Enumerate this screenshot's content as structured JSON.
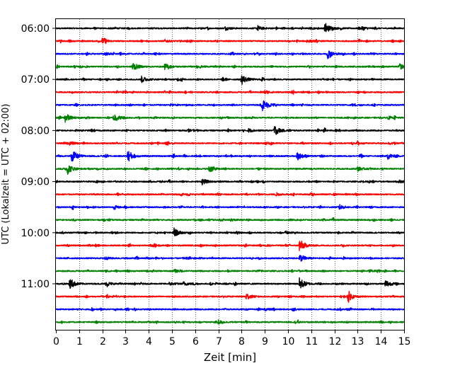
{
  "chart_data": {
    "type": "line",
    "subtype": "seismogram-helicorder",
    "xlabel": "Zeit  [min]",
    "ylabel": "UTC (Lokalzeit = UTC + 02:00)",
    "xlim": [
      0,
      15
    ],
    "x_ticks": [
      "0",
      "1",
      "2",
      "3",
      "4",
      "5",
      "6",
      "7",
      "8",
      "9",
      "10",
      "11",
      "12",
      "13",
      "14",
      "15"
    ],
    "y_ticks": [
      "06:00",
      "07:00",
      "08:00",
      "09:00",
      "10:00",
      "11:00"
    ],
    "grid": "vertical dotted lines at each minute",
    "trace_minutes": 15,
    "trace_colors": [
      "#000000",
      "#ff0000",
      "#0000ff",
      "#008000"
    ],
    "traces": [
      {
        "start": "06:00",
        "color": "#000000",
        "events": [
          {
            "t": 11.6,
            "amp": 1.0
          },
          {
            "t": 8.7,
            "amp": 0.35
          },
          {
            "t": 13.2,
            "amp": 0.3
          },
          {
            "t": 7.3,
            "amp": 0.3
          }
        ]
      },
      {
        "start": "06:15",
        "color": "#ff0000",
        "events": [
          {
            "t": 2.0,
            "amp": 0.45
          },
          {
            "t": 10.8,
            "amp": 0.25
          },
          {
            "t": 4.7,
            "amp": 0.2
          }
        ]
      },
      {
        "start": "06:30",
        "color": "#0000ff",
        "events": [
          {
            "t": 11.7,
            "amp": 0.8
          },
          {
            "t": 2.1,
            "amp": 0.25
          }
        ]
      },
      {
        "start": "06:45",
        "color": "#008000",
        "events": [
          {
            "t": 3.3,
            "amp": 0.8
          },
          {
            "t": 4.7,
            "amp": 0.5
          },
          {
            "t": 14.8,
            "amp": 0.5
          }
        ]
      },
      {
        "start": "07:00",
        "color": "#000000",
        "events": [
          {
            "t": 3.7,
            "amp": 0.55
          },
          {
            "t": 8.0,
            "amp": 0.9
          }
        ]
      },
      {
        "start": "07:15",
        "color": "#ff0000",
        "events": [
          {
            "t": 9.0,
            "amp": 0.3
          }
        ]
      },
      {
        "start": "07:30",
        "color": "#0000ff",
        "events": [
          {
            "t": 8.9,
            "amp": 1.0
          }
        ]
      },
      {
        "start": "07:45",
        "color": "#008000",
        "events": [
          {
            "t": 0.4,
            "amp": 0.8
          },
          {
            "t": 2.5,
            "amp": 0.8
          }
        ]
      },
      {
        "start": "08:00",
        "color": "#000000",
        "events": [
          {
            "t": 9.4,
            "amp": 1.0
          },
          {
            "t": 8.3,
            "amp": 0.3
          }
        ]
      },
      {
        "start": "08:15",
        "color": "#ff0000",
        "events": [
          {
            "t": 0.6,
            "amp": 0.3
          },
          {
            "t": 9.0,
            "amp": 0.2
          }
        ]
      },
      {
        "start": "08:30",
        "color": "#0000ff",
        "events": [
          {
            "t": 0.7,
            "amp": 1.1
          },
          {
            "t": 3.1,
            "amp": 1.1
          },
          {
            "t": 10.4,
            "amp": 0.7
          },
          {
            "t": 14.3,
            "amp": 0.5
          }
        ]
      },
      {
        "start": "08:45",
        "color": "#008000",
        "events": [
          {
            "t": 0.5,
            "amp": 0.9
          },
          {
            "t": 6.6,
            "amp": 0.6
          },
          {
            "t": 13.0,
            "amp": 0.35
          }
        ]
      },
      {
        "start": "09:00",
        "color": "#000000",
        "events": [
          {
            "t": 6.3,
            "amp": 0.5
          },
          {
            "t": 14.8,
            "amp": 0.2
          }
        ]
      },
      {
        "start": "09:15",
        "color": "#ff0000",
        "events": [
          {
            "t": 9.5,
            "amp": 0.2
          }
        ]
      },
      {
        "start": "09:30",
        "color": "#0000ff",
        "events": [
          {
            "t": 12.2,
            "amp": 0.45
          },
          {
            "t": 2.5,
            "amp": 0.2
          }
        ]
      },
      {
        "start": "09:45",
        "color": "#008000",
        "events": [
          {
            "t": 7.5,
            "amp": 0.2
          }
        ]
      },
      {
        "start": "10:00",
        "color": "#000000",
        "events": [
          {
            "t": 5.1,
            "amp": 0.7
          },
          {
            "t": 9.9,
            "amp": 0.25
          }
        ]
      },
      {
        "start": "10:15",
        "color": "#ff0000",
        "events": [
          {
            "t": 10.5,
            "amp": 1.1
          },
          {
            "t": 4.1,
            "amp": 0.25
          }
        ]
      },
      {
        "start": "10:30",
        "color": "#0000ff",
        "events": [
          {
            "t": 10.5,
            "amp": 0.65
          },
          {
            "t": 2.1,
            "amp": 0.25
          }
        ]
      },
      {
        "start": "10:45",
        "color": "#008000",
        "events": [
          {
            "t": 5.1,
            "amp": 0.25
          },
          {
            "t": 13.5,
            "amp": 0.2
          }
        ]
      },
      {
        "start": "11:00",
        "color": "#000000",
        "events": [
          {
            "t": 0.6,
            "amp": 0.9
          },
          {
            "t": 10.5,
            "amp": 1.1
          },
          {
            "t": 14.2,
            "amp": 0.7
          },
          {
            "t": 2.2,
            "amp": 0.35
          },
          {
            "t": 5.5,
            "amp": 0.35
          },
          {
            "t": 4.9,
            "amp": 0.3
          }
        ]
      },
      {
        "start": "11:15",
        "color": "#ff0000",
        "events": [
          {
            "t": 8.2,
            "amp": 0.6
          },
          {
            "t": 12.6,
            "amp": 0.75
          }
        ]
      },
      {
        "start": "11:30",
        "color": "#0000ff",
        "events": [
          {
            "t": 9.0,
            "amp": 0.2
          }
        ]
      },
      {
        "start": "11:45",
        "color": "#008000",
        "events": [
          {
            "t": 7.0,
            "amp": 0.2
          }
        ]
      }
    ]
  }
}
